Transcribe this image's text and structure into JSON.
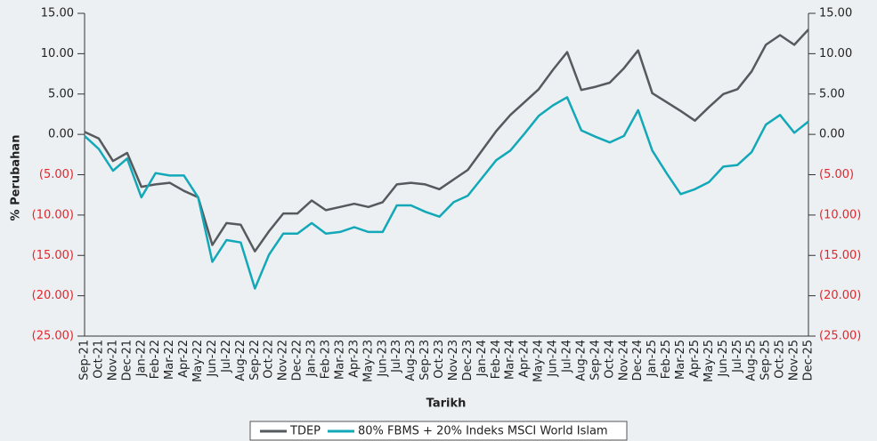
{
  "chart_data": {
    "type": "line",
    "x_label": "Tarikh",
    "y_label": "% Perubahan",
    "categories": [
      "Sep-21",
      "Oct-21",
      "Nov-21",
      "Dec-21",
      "Jan-22",
      "Feb-22",
      "Mar-22",
      "Apr-22",
      "May-22",
      "Jun-22",
      "Jul-22",
      "Aug-22",
      "Sep-22",
      "Oct-22",
      "Nov-22",
      "Dec-22",
      "Jan-23",
      "Feb-23",
      "Mar-23",
      "Apr-23",
      "May-23",
      "Jun-23",
      "Jul-23",
      "Aug-23",
      "Sep-23",
      "Oct-23",
      "Nov-23",
      "Dec-23",
      "Jan-24",
      "Feb-24",
      "Mar-24",
      "Apr-24",
      "May-24",
      "Jun-24",
      "Jul-24",
      "Aug-24",
      "Sep-24",
      "Oct-24",
      "Nov-24",
      "Dec-24",
      "Jan-25",
      "Feb-25",
      "Mar-25",
      "Apr-25",
      "May-25",
      "Jun-25",
      "Jul-25",
      "Aug-25",
      "Sep-25",
      "Oct-25",
      "Nov-25",
      "Dec-25"
    ],
    "series": [
      {
        "name": "TDEP",
        "color": "#555a5e",
        "values": [
          0.3,
          -0.5,
          -3.3,
          -2.3,
          -6.5,
          -6.2,
          -6.0,
          -7.0,
          -7.8,
          -13.7,
          -11.0,
          -11.2,
          -14.5,
          -12.0,
          -9.8,
          -9.8,
          -8.2,
          -9.4,
          -9.0,
          -8.6,
          -9.0,
          -8.4,
          -6.2,
          -6.0,
          -6.2,
          -6.8,
          -5.6,
          -4.4,
          -2.0,
          0.4,
          2.4,
          4.0,
          5.6,
          8.0,
          10.2,
          5.5,
          5.9,
          6.4,
          8.2,
          10.4,
          5.1,
          4.0,
          2.9,
          1.7,
          3.4,
          5.0,
          5.6,
          7.8,
          11.1,
          12.3,
          11.1,
          13.0
        ]
      },
      {
        "name": "80% FBMS + 20% Indeks MSCI World Islam",
        "color": "#12a8b8",
        "values": [
          -0.2,
          -1.8,
          -4.5,
          -3.0,
          -7.8,
          -4.8,
          -5.1,
          -5.1,
          -7.8,
          -15.8,
          -13.1,
          -13.4,
          -19.1,
          -14.9,
          -12.3,
          -12.3,
          -11.0,
          -12.3,
          -12.1,
          -11.5,
          -12.1,
          -12.1,
          -8.8,
          -8.8,
          -9.6,
          -10.2,
          -8.4,
          -7.6,
          -5.4,
          -3.2,
          -2.0,
          0.1,
          2.3,
          3.6,
          4.6,
          0.5,
          -0.3,
          -1.0,
          -0.2,
          3.0,
          -2.0,
          -4.8,
          -7.4,
          -6.8,
          -5.9,
          -4.0,
          -3.8,
          -2.2,
          1.2,
          2.4,
          0.2,
          1.6
        ]
      }
    ],
    "ylim": [
      -25,
      15
    ],
    "yticks": [
      {
        "value": -25,
        "label": "(25.00)"
      },
      {
        "value": -20,
        "label": "(20.00)"
      },
      {
        "value": -15,
        "label": "(15.00)"
      },
      {
        "value": -10,
        "label": "(10.00)"
      },
      {
        "value": -5,
        "label": "(5.00)"
      },
      {
        "value": 0,
        "label": "0.00"
      },
      {
        "value": 5,
        "label": "5.00"
      },
      {
        "value": 10,
        "label": "10.00"
      },
      {
        "value": 15,
        "label": "15.00"
      }
    ],
    "y2lim": [
      -25,
      15
    ],
    "y2ticks": [
      {
        "value": -25,
        "label": "(25.00)"
      },
      {
        "value": -20,
        "label": "(20.00)"
      },
      {
        "value": -15,
        "label": "(15.00)"
      },
      {
        "value": -10,
        "label": "(10.00)"
      },
      {
        "value": -5,
        "label": "(5.00)"
      },
      {
        "value": 0,
        "label": "0.00"
      },
      {
        "value": 5,
        "label": "5.00"
      },
      {
        "value": 10,
        "label": "10.00"
      },
      {
        "value": 15,
        "label": "15.00"
      }
    ],
    "negative_tick_color": "#e3262b",
    "legend": "bottom"
  }
}
